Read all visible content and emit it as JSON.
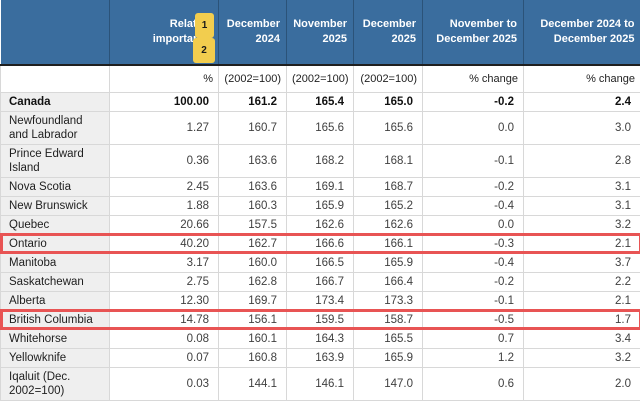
{
  "chart_data": {
    "type": "table",
    "corner_label": "",
    "column_headers": [
      "Relative importance",
      "December 2024",
      "November 2025",
      "December 2025",
      "November to December 2025",
      "December 2024 to December 2025"
    ],
    "unit_row": [
      "%",
      "(2002=100)",
      "(2002=100)",
      "(2002=100)",
      "% change",
      "% change"
    ],
    "footnote_markers": [
      "1",
      "2"
    ],
    "rows": [
      {
        "label": "Canada",
        "bold": true,
        "highlighted": false,
        "values": [
          "100.00",
          "161.2",
          "165.4",
          "165.0",
          "-0.2",
          "2.4"
        ]
      },
      {
        "label": "Newfoundland and Labrador",
        "bold": false,
        "highlighted": false,
        "values": [
          "1.27",
          "160.7",
          "165.6",
          "165.6",
          "0.0",
          "3.0"
        ]
      },
      {
        "label": "Prince Edward Island",
        "bold": false,
        "highlighted": false,
        "values": [
          "0.36",
          "163.6",
          "168.2",
          "168.1",
          "-0.1",
          "2.8"
        ]
      },
      {
        "label": "Nova Scotia",
        "bold": false,
        "highlighted": false,
        "values": [
          "2.45",
          "163.6",
          "169.1",
          "168.7",
          "-0.2",
          "3.1"
        ]
      },
      {
        "label": "New Brunswick",
        "bold": false,
        "highlighted": false,
        "values": [
          "1.88",
          "160.3",
          "165.9",
          "165.2",
          "-0.4",
          "3.1"
        ]
      },
      {
        "label": "Quebec",
        "bold": false,
        "highlighted": false,
        "values": [
          "20.66",
          "157.5",
          "162.6",
          "162.6",
          "0.0",
          "3.2"
        ]
      },
      {
        "label": "Ontario",
        "bold": false,
        "highlighted": true,
        "values": [
          "40.20",
          "162.7",
          "166.6",
          "166.1",
          "-0.3",
          "2.1"
        ]
      },
      {
        "label": "Manitoba",
        "bold": false,
        "highlighted": false,
        "values": [
          "3.17",
          "160.0",
          "166.5",
          "165.9",
          "-0.4",
          "3.7"
        ]
      },
      {
        "label": "Saskatchewan",
        "bold": false,
        "highlighted": false,
        "values": [
          "2.75",
          "162.8",
          "166.7",
          "166.4",
          "-0.2",
          "2.2"
        ]
      },
      {
        "label": "Alberta",
        "bold": false,
        "highlighted": false,
        "values": [
          "12.30",
          "169.7",
          "173.4",
          "173.3",
          "-0.1",
          "2.1"
        ]
      },
      {
        "label": "British Columbia",
        "bold": false,
        "highlighted": true,
        "values": [
          "14.78",
          "156.1",
          "159.5",
          "158.7",
          "-0.5",
          "1.7"
        ]
      },
      {
        "label": "Whitehorse",
        "bold": false,
        "highlighted": false,
        "values": [
          "0.08",
          "160.1",
          "164.3",
          "165.5",
          "0.7",
          "3.4"
        ]
      },
      {
        "label": "Yellowknife",
        "bold": false,
        "highlighted": false,
        "values": [
          "0.07",
          "160.8",
          "163.9",
          "165.9",
          "1.2",
          "3.2"
        ]
      },
      {
        "label": "Iqaluit (Dec. 2002=100)",
        "bold": false,
        "highlighted": false,
        "values": [
          "0.03",
          "144.1",
          "146.1",
          "147.0",
          "0.6",
          "2.0"
        ]
      }
    ],
    "highlighted_rows": [
      "Ontario",
      "British Columbia"
    ]
  },
  "colors": {
    "header_bg": "#3a6d9e",
    "header_text": "#ffffff",
    "header_divider": "#2b5379",
    "header_bottom_border": "#1f1f1f",
    "footnote_badge_bg": "#f2cd4e",
    "label_col_bg": "#efefef",
    "grid_line": "#d8d8d8",
    "highlight_box": "#e85454",
    "text": "#3c3c3c"
  }
}
